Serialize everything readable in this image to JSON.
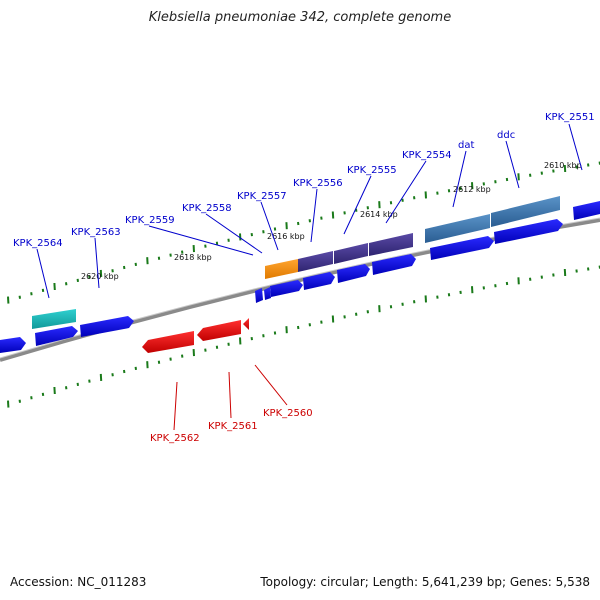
{
  "title": "Klebsiella pneumoniae 342, complete genome",
  "footer": {
    "accession": "Accession: NC_011283",
    "summary": "Topology: circular; Length: 5,641,239 bp; Genes: 5,538"
  },
  "colors": {
    "forward_label": "#0000cc",
    "reverse_label": "#cc0000",
    "forward_cds": "#1010e6",
    "reverse_cds": "#ee1111",
    "tick": "#1a7a1a",
    "axis": "#808080"
  },
  "kbp_labels": [
    "2610 kbp",
    "2612 kbp",
    "2614 kbp",
    "2616 kbp",
    "2618 kbp",
    "2620 kbp"
  ],
  "forward_gene_labels": [
    "KPK_2551",
    "ddc",
    "dat",
    "KPK_2554",
    "KPK_2555",
    "KPK_2556",
    "KPK_2557",
    "KPK_2558",
    "KPK_2559",
    "KPK_2563",
    "KPK_2564"
  ],
  "reverse_gene_labels": [
    "KPK_2560",
    "KPK_2561",
    "KPK_2562"
  ]
}
